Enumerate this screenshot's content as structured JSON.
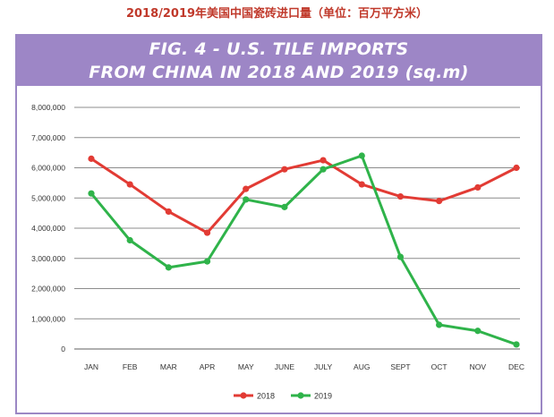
{
  "caption": "2018/2019年美国中国瓷砖进口量（单位：百万平方米）",
  "chart_data": {
    "type": "line",
    "title_lines": [
      "FIG. 4 - U.S. TILE IMPORTS",
      "FROM CHINA IN 2018 AND 2019 (sq.m)"
    ],
    "categories": [
      "JAN",
      "FEB",
      "MAR",
      "APR",
      "MAY",
      "JUNE",
      "JULY",
      "AUG",
      "SEPT",
      "OCT",
      "NOV",
      "DEC"
    ],
    "y_ticks": [
      "0",
      "1,000,000",
      "2,000,000",
      "3,000,000",
      "4,000,000",
      "5,000,000",
      "6,000,000",
      "7,000,000",
      "8,000,000"
    ],
    "ylim": [
      0,
      8000000
    ],
    "grid": true,
    "legend_position": "bottom",
    "series": [
      {
        "name": "2018",
        "color": "#e23b34",
        "values": [
          6300000,
          5450000,
          4550000,
          3850000,
          5300000,
          5950000,
          6250000,
          5450000,
          5050000,
          4900000,
          5350000,
          6000000
        ]
      },
      {
        "name": "2019",
        "color": "#2fb34a",
        "values": [
          5150000,
          3600000,
          2700000,
          2900000,
          4950000,
          4700000,
          5950000,
          6400000,
          3050000,
          800000,
          600000,
          150000
        ]
      }
    ]
  }
}
